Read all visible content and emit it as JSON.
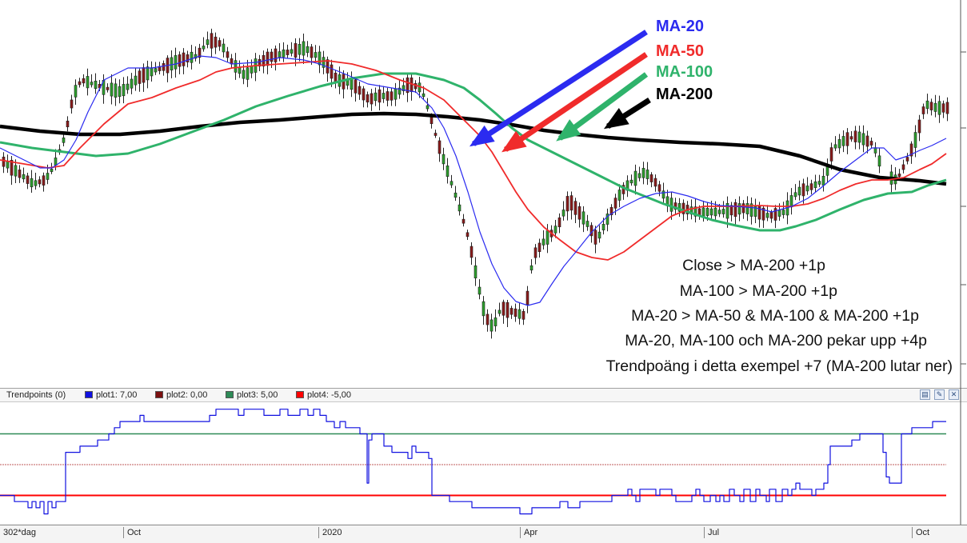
{
  "chart_data": [
    {
      "type": "candlestick",
      "title": "",
      "legend": [
        "MA-20",
        "MA-50",
        "MA-100",
        "MA-200"
      ],
      "legend_colors": [
        "#2b2bf0",
        "#f02b2b",
        "#2fb36b",
        "#000000"
      ],
      "annotations": [
        "Close > MA-200 +1p",
        "MA-100 > MA-200 +1p",
        "MA-20 > MA-50 & MA-100 & MA-200 +1p",
        "MA-20, MA-100 och MA-200 pekar upp +4p",
        "Trendpoäng i detta exempel +7 (MA-200 lutar ner)"
      ]
    },
    {
      "type": "line",
      "title": "Trendpoints (0)",
      "series": [
        {
          "name": "plot1",
          "value": "7,00",
          "color": "#0000ff"
        },
        {
          "name": "plot2",
          "value": "0,00",
          "color": "#800000"
        },
        {
          "name": "plot3",
          "value": "5,00",
          "color": "#2e8b57"
        },
        {
          "name": "plot4",
          "value": "-5,00",
          "color": "#ff0000"
        }
      ],
      "reference_lines": [
        5,
        0,
        -5
      ],
      "points": [
        [
          0,
          -5
        ],
        [
          10,
          -5
        ],
        [
          18,
          -6
        ],
        [
          28,
          -6
        ],
        [
          35,
          -7
        ],
        [
          40,
          -6
        ],
        [
          45,
          -7
        ],
        [
          50,
          -6
        ],
        [
          55,
          -8
        ],
        [
          60,
          -6
        ],
        [
          65,
          -7
        ],
        [
          70,
          -6
        ],
        [
          78,
          -6
        ],
        [
          82,
          2
        ],
        [
          96,
          2
        ],
        [
          100,
          3
        ],
        [
          118,
          3
        ],
        [
          122,
          4
        ],
        [
          133,
          4
        ],
        [
          136,
          5
        ],
        [
          143,
          6
        ],
        [
          150,
          7
        ],
        [
          160,
          7
        ],
        [
          165,
          7
        ],
        [
          175,
          8
        ],
        [
          180,
          7
        ],
        [
          195,
          7
        ],
        [
          210,
          7
        ],
        [
          225,
          7
        ],
        [
          240,
          7
        ],
        [
          255,
          7
        ],
        [
          262,
          8
        ],
        [
          270,
          9
        ],
        [
          290,
          9
        ],
        [
          298,
          8
        ],
        [
          305,
          9
        ],
        [
          325,
          9
        ],
        [
          330,
          8
        ],
        [
          345,
          8
        ],
        [
          350,
          9
        ],
        [
          360,
          8
        ],
        [
          375,
          9
        ],
        [
          385,
          8
        ],
        [
          392,
          9
        ],
        [
          400,
          8
        ],
        [
          408,
          7
        ],
        [
          418,
          6
        ],
        [
          425,
          7
        ],
        [
          432,
          6
        ],
        [
          440,
          6
        ],
        [
          450,
          5
        ],
        [
          456,
          5
        ],
        [
          459,
          -3
        ],
        [
          461,
          4
        ],
        [
          465,
          5
        ],
        [
          475,
          5
        ],
        [
          480,
          3
        ],
        [
          490,
          2
        ],
        [
          500,
          2
        ],
        [
          510,
          1
        ],
        [
          515,
          3
        ],
        [
          520,
          2
        ],
        [
          530,
          2
        ],
        [
          536,
          1
        ],
        [
          540,
          -5
        ],
        [
          558,
          -5
        ],
        [
          562,
          -6
        ],
        [
          580,
          -6
        ],
        [
          590,
          -7
        ],
        [
          600,
          -7
        ],
        [
          615,
          -7
        ],
        [
          630,
          -7
        ],
        [
          640,
          -7
        ],
        [
          650,
          -8
        ],
        [
          660,
          -8
        ],
        [
          665,
          -7
        ],
        [
          675,
          -7
        ],
        [
          690,
          -7
        ],
        [
          700,
          -6
        ],
        [
          710,
          -7
        ],
        [
          725,
          -6
        ],
        [
          740,
          -6
        ],
        [
          755,
          -6
        ],
        [
          765,
          -5
        ],
        [
          780,
          -5
        ],
        [
          785,
          -4
        ],
        [
          790,
          -5
        ],
        [
          795,
          -6
        ],
        [
          800,
          -4
        ],
        [
          815,
          -4
        ],
        [
          820,
          -5
        ],
        [
          825,
          -4
        ],
        [
          840,
          -5
        ],
        [
          845,
          -6
        ],
        [
          860,
          -6
        ],
        [
          865,
          -5
        ],
        [
          870,
          -4
        ],
        [
          875,
          -5
        ],
        [
          880,
          -6
        ],
        [
          888,
          -5
        ],
        [
          895,
          -6
        ],
        [
          900,
          -5
        ],
        [
          905,
          -6
        ],
        [
          912,
          -4
        ],
        [
          918,
          -5
        ],
        [
          925,
          -6
        ],
        [
          930,
          -4
        ],
        [
          938,
          -6
        ],
        [
          945,
          -4
        ],
        [
          950,
          -5
        ],
        [
          958,
          -6
        ],
        [
          962,
          -4
        ],
        [
          970,
          -6
        ],
        [
          978,
          -4
        ],
        [
          985,
          -5
        ],
        [
          990,
          -4
        ],
        [
          995,
          -3
        ],
        [
          1000,
          -4
        ],
        [
          1010,
          -4
        ],
        [
          1015,
          -5
        ],
        [
          1020,
          -4
        ],
        [
          1025,
          -4
        ],
        [
          1030,
          -3
        ],
        [
          1035,
          0
        ],
        [
          1038,
          3
        ],
        [
          1050,
          3
        ],
        [
          1060,
          3
        ],
        [
          1065,
          4
        ],
        [
          1075,
          5
        ],
        [
          1085,
          5
        ],
        [
          1095,
          5
        ],
        [
          1102,
          5
        ],
        [
          1104,
          2
        ],
        [
          1108,
          -2
        ],
        [
          1112,
          -3
        ],
        [
          1124,
          -3
        ],
        [
          1127,
          5
        ],
        [
          1132,
          5
        ],
        [
          1140,
          6
        ],
        [
          1150,
          6
        ],
        [
          1160,
          6
        ],
        [
          1166,
          7
        ],
        [
          1183,
          7
        ]
      ]
    }
  ],
  "ma_labels": [
    {
      "text": "MA-20",
      "color": "#2b2bf0"
    },
    {
      "text": "MA-50",
      "color": "#f02b2b"
    },
    {
      "text": "MA-100",
      "color": "#2fb36b"
    },
    {
      "text": "MA-200",
      "color": "#000000"
    }
  ],
  "rules": [
    "Close > MA-200 +1p",
    "MA-100 > MA-200 +1p",
    "MA-20 > MA-50 & MA-100 & MA-200 +1p",
    "MA-20, MA-100 och MA-200 pekar upp +4p",
    "Trendpoäng i detta exempel +7 (MA-200 lutar ner)"
  ],
  "indicator": {
    "title": "Trendpoints (0)",
    "plot1": "plot1: 7,00",
    "plot2": "plot2: 0,00",
    "plot3": "plot3: 5,00",
    "plot4": "plot4: -5,00",
    "colors": {
      "plot1": "#1010e0",
      "plot2": "#7a1010",
      "plot3": "#2e8b57",
      "plot4": "#ff0000"
    }
  },
  "xaxis": {
    "ticks": [
      "302*dag",
      "Oct",
      "2020",
      "Apr",
      "Jul",
      "Oct"
    ]
  }
}
